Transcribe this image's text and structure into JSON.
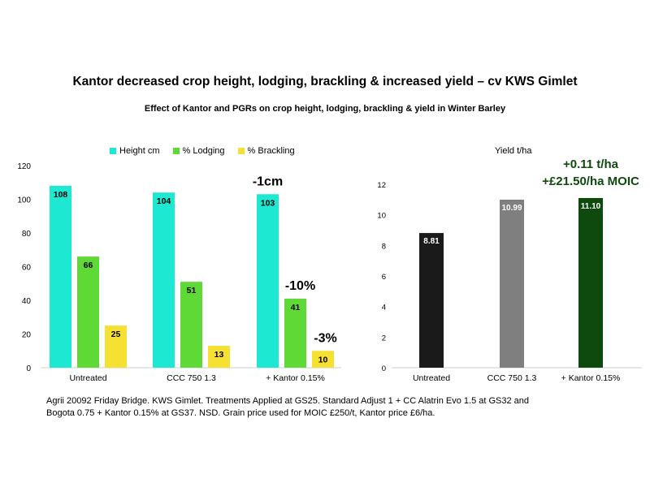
{
  "title": "Kantor decreased crop height, lodging, brackling & increased yield – cv KWS Gimlet",
  "subtitle": "Effect of Kantor and PGRs on crop height, lodging, brackling & yield in Winter Barley",
  "legend": [
    {
      "label": "Height cm",
      "color": "#1de8d2"
    },
    {
      "label": "% Lodging",
      "color": "#5fd936"
    },
    {
      "label": "% Brackling",
      "color": "#f6e132"
    }
  ],
  "yield_label": "Yield t/ha",
  "footnote": "Agrii 20092 Friday Bridge. KWS Gimlet. Treatments Applied at GS25. Standard Adjust 1 + CC Alatrin Evo 1.5 at GS32 and Bogota 0.75 + Kantor 0.15% at GS37. NSD. Grain price used for MOIC £250/t, Kantor price £6/ha.",
  "chart_data": [
    {
      "type": "bar",
      "categories": [
        "Untreated",
        "CCC 750 1.3",
        "+ Kantor 0.15%"
      ],
      "ylim": [
        0,
        120
      ],
      "yticks": [
        0,
        20,
        40,
        60,
        80,
        100,
        120
      ],
      "series": [
        {
          "name": "Height cm",
          "color": "#1de8d2",
          "values": [
            108,
            104,
            103
          ]
        },
        {
          "name": "% Lodging",
          "color": "#5fd936",
          "values": [
            66,
            51,
            41
          ]
        },
        {
          "name": "% Brackling",
          "color": "#f6e132",
          "values": [
            25,
            13,
            10
          ]
        }
      ],
      "annotations": [
        "-1cm",
        "-10%",
        "-3%"
      ]
    },
    {
      "type": "bar",
      "ylabel": "Yield t/ha",
      "categories": [
        "Untreated",
        "CCC 750 1.3",
        "+ Kantor 0.15%"
      ],
      "ylim": [
        0,
        12
      ],
      "yticks": [
        0,
        2,
        4,
        6,
        8,
        10,
        12
      ],
      "values": [
        8.81,
        10.99,
        11.1
      ],
      "value_labels": [
        "8.81",
        "10.99",
        "11.10"
      ],
      "colors": [
        "#1a1a1a",
        "#7f7f7f",
        "#0e4a0e"
      ],
      "annotations": [
        "+0.11 t/ha",
        "+£21.50/ha MOIC"
      ],
      "annotation_color": "#0e4a0e"
    }
  ]
}
